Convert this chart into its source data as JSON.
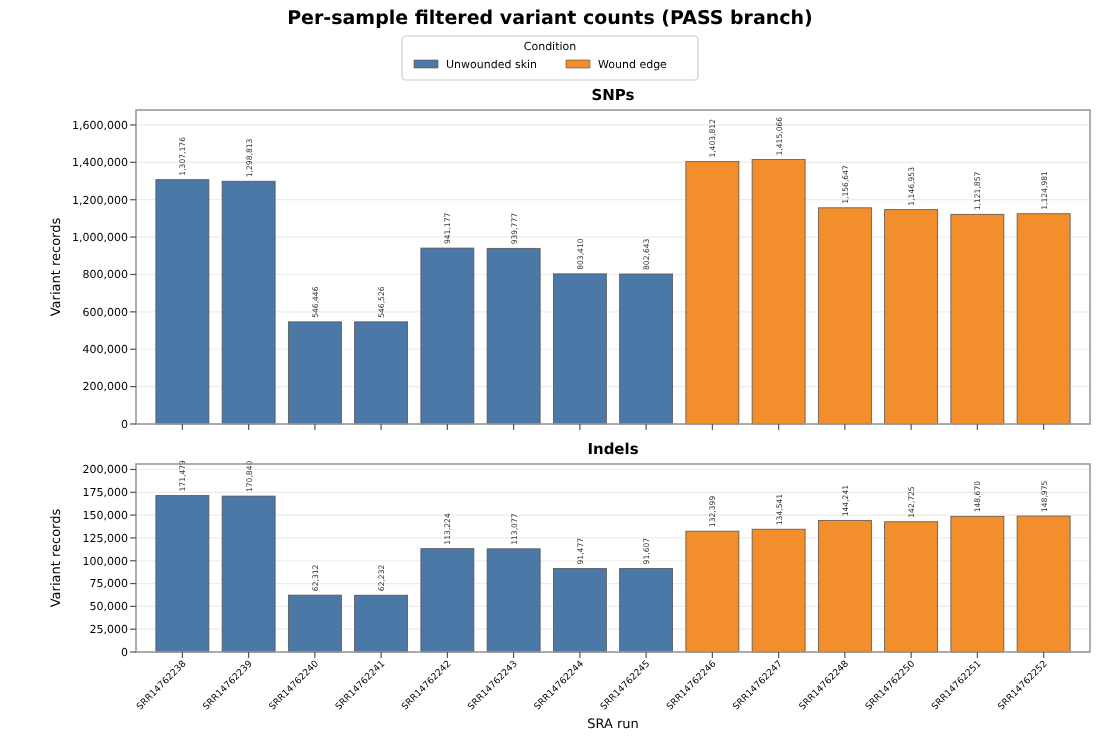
{
  "chart_data": [
    {
      "type": "bar",
      "title": "Per-sample filtered variant counts (PASS branch)",
      "subtitle": "SNPs",
      "ylabel": "Variant records",
      "legend_title": "Condition",
      "legend": "top",
      "grid": "y",
      "tick_labels": "y",
      "categories": [
        null,
        null,
        null,
        null,
        null,
        null,
        null,
        null,
        null,
        null,
        null,
        null,
        null,
        null
      ],
      "ylim": [
        0,
        1680000
      ],
      "yticks": [
        {
          "value": 0,
          "label": "0"
        },
        {
          "value": 200000,
          "label": "200,000"
        },
        {
          "value": 400000,
          "label": "400,000"
        },
        {
          "value": 600000,
          "label": "600,000"
        },
        {
          "value": 800000,
          "label": "800,000"
        },
        {
          "value": 1000000,
          "label": "1,000,000"
        },
        {
          "value": 1200000,
          "label": "1,200,000"
        },
        {
          "value": 1400000,
          "label": "1,400,000"
        },
        {
          "value": 1600000,
          "label": "1,600,000"
        }
      ],
      "series": [
        {
          "name": "Unwounded skin",
          "color": "#4c78a8",
          "values": [
            1307176,
            1298813,
            546446,
            546526,
            941177,
            939777,
            803410,
            802643,
            null,
            null,
            null,
            null,
            null,
            null
          ],
          "value_labels": [
            "1,307,176",
            "1,298,813",
            "546,446",
            "546,526",
            "941,177",
            "939,777",
            "803,410",
            "802,643",
            null,
            null,
            null,
            null,
            null,
            null
          ]
        },
        {
          "name": "Wound edge",
          "color": "#f28e2b",
          "values": [
            null,
            null,
            null,
            null,
            null,
            null,
            null,
            null,
            1403812,
            1415066,
            1156647,
            1146953,
            1121857,
            1124981
          ],
          "value_labels": [
            null,
            null,
            null,
            null,
            null,
            null,
            null,
            null,
            "1,403,812",
            "1,415,066",
            "1,156,647",
            "1,146,953",
            "1,121,857",
            "1,124,981"
          ]
        }
      ]
    },
    {
      "type": "bar",
      "subtitle": "Indels",
      "ylabel": "Variant records",
      "xlabel": "SRA run",
      "grid": "y",
      "categories": [
        "SRR14762238",
        "SRR14762239",
        "SRR14762240",
        "SRR14762241",
        "SRR14762242",
        "SRR14762243",
        "SRR14762244",
        "SRR14762245",
        "SRR14762246",
        "SRR14762247",
        "SRR14762248",
        "SRR14762250",
        "SRR14762251",
        "SRR14762252"
      ],
      "ylim": [
        0,
        206000
      ],
      "yticks": [
        {
          "value": 0,
          "label": "0"
        },
        {
          "value": 25000,
          "label": "25,000"
        },
        {
          "value": 50000,
          "label": "50,000"
        },
        {
          "value": 75000,
          "label": "75,000"
        },
        {
          "value": 100000,
          "label": "100,000"
        },
        {
          "value": 125000,
          "label": "125,000"
        },
        {
          "value": 150000,
          "label": "150,000"
        },
        {
          "value": 175000,
          "label": "175,000"
        },
        {
          "value": 200000,
          "label": "200,000"
        }
      ],
      "series": [
        {
          "color": "#4c78a8",
          "values": [
            171479,
            170840,
            62312,
            62232,
            113224,
            113077,
            91477,
            91607,
            null,
            null,
            null,
            null,
            null,
            null
          ],
          "value_labels": [
            "171,479",
            "170,840",
            "62,312",
            "62,232",
            "113,224",
            "113,077",
            "91,477",
            "91,607",
            null,
            null,
            null,
            null,
            null,
            null
          ]
        },
        {
          "color": "#f28e2b",
          "values": [
            null,
            null,
            null,
            null,
            null,
            null,
            null,
            null,
            132399,
            134541,
            144241,
            142725,
            148670,
            148975
          ],
          "value_labels": [
            null,
            null,
            null,
            null,
            null,
            null,
            null,
            null,
            "132,399",
            "134,541",
            "144,241",
            "142,725",
            "148,670",
            "148,975"
          ]
        }
      ]
    }
  ]
}
